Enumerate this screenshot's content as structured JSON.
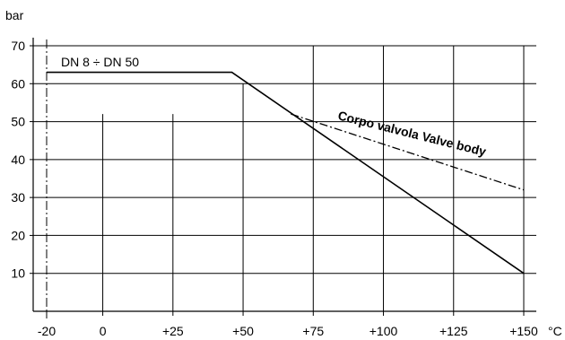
{
  "chart_data": {
    "type": "line",
    "title": "",
    "xlabel": "°C",
    "ylabel": "bar",
    "xlim": [
      -20,
      150
    ],
    "ylim": [
      0,
      70
    ],
    "x_ticks": [
      -20,
      0,
      25,
      50,
      75,
      100,
      125,
      150
    ],
    "x_tick_labels": [
      "-20",
      "0",
      "+25",
      "+50",
      "+75",
      "+100",
      "+125",
      "+150"
    ],
    "y_ticks": [
      10,
      20,
      30,
      40,
      50,
      60,
      70
    ],
    "y_tick_labels": [
      "10",
      "20",
      "30",
      "40",
      "50",
      "60",
      "70"
    ],
    "grid": true,
    "reference_line": {
      "x": -20,
      "style": "dash-dot"
    },
    "series": [
      {
        "name": "DN 8 ÷ DN 50",
        "style": "solid",
        "x": [
          -20,
          46,
          150
        ],
        "y": [
          63,
          63,
          10
        ]
      },
      {
        "name": "Corpo valvola Valve body",
        "style": "dash-dot",
        "x": [
          67,
          150
        ],
        "y": [
          52,
          32
        ]
      }
    ],
    "colors": {
      "line": "#000000",
      "grid": "#000000",
      "background": "#ffffff"
    }
  }
}
